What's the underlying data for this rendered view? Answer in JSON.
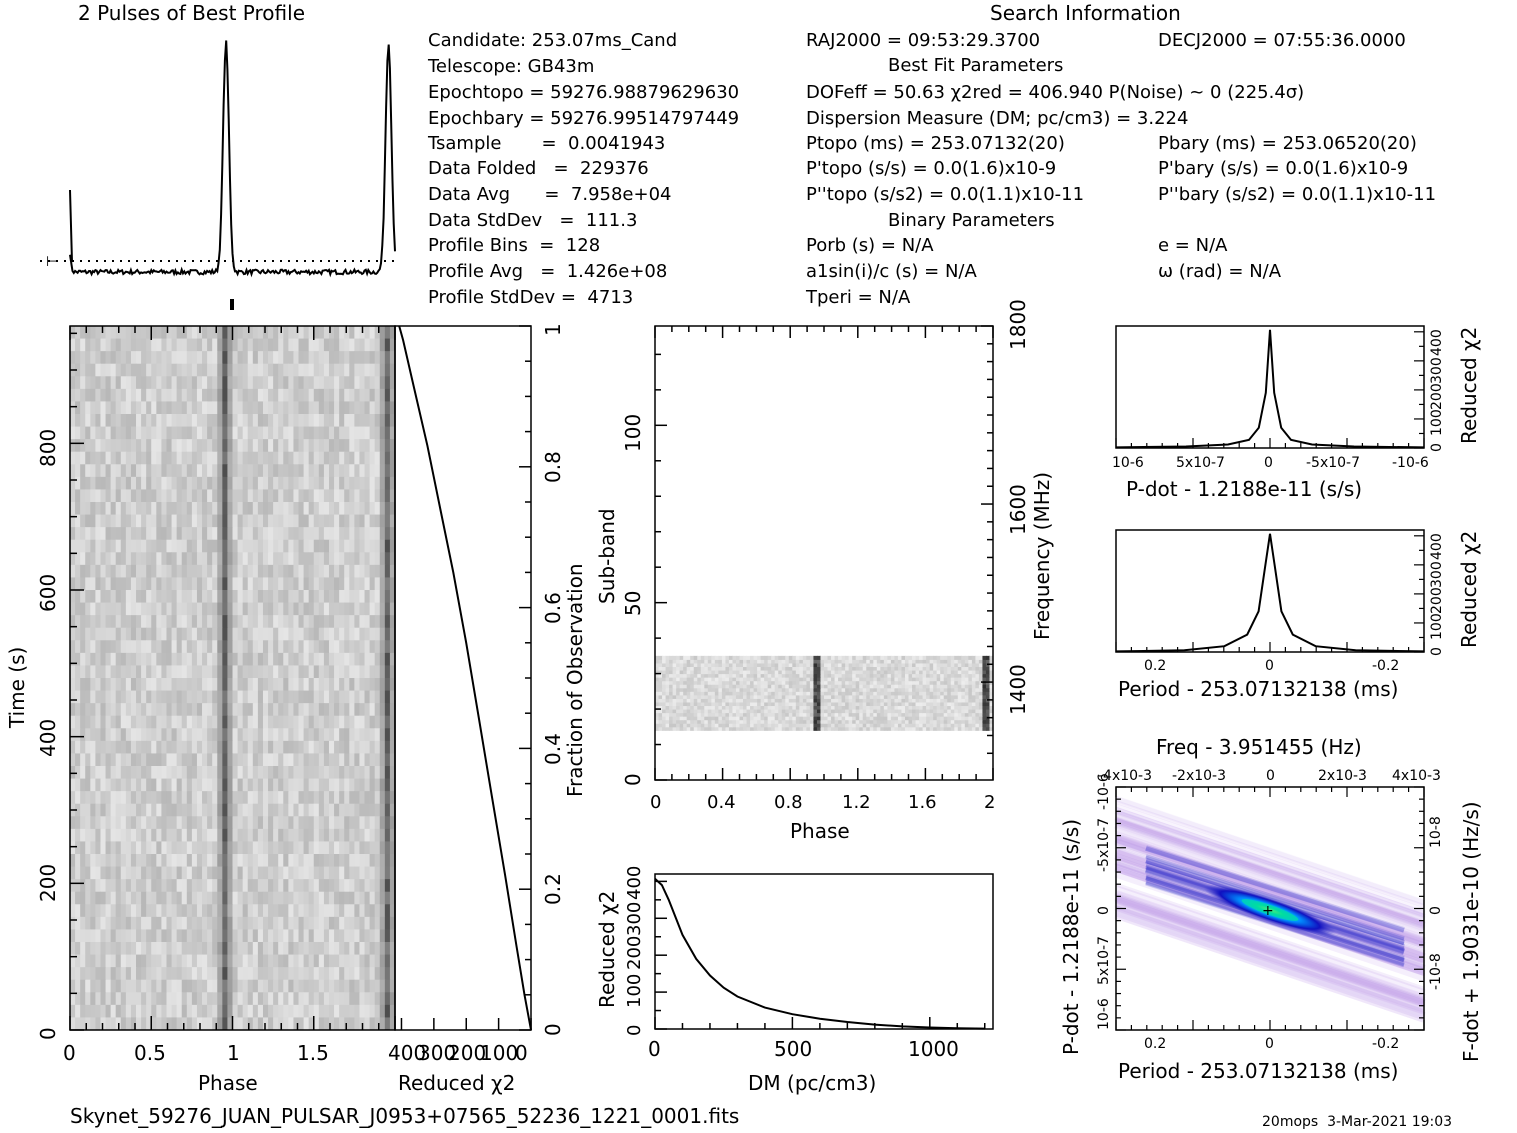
{
  "header": {
    "profile_title": "2 Pulses of Best Profile",
    "search_title": "Search Information",
    "best_fit_title": "Best Fit Parameters",
    "binary_title": "Binary Parameters"
  },
  "info_left": [
    "Candidate:  253.07ms_Cand",
    "Telescope:  GB43m",
    "Epochtopo = 59276.98879629630",
    "Epochbary = 59276.99514797449",
    "Tsample       =  0.0041943",
    "Data Folded   =  229376",
    "Data Avg      =  7.958e+04",
    "Data StdDev   =  111.3",
    "Profile Bins  =  128",
    "Profile Avg   =  1.426e+08",
    "Profile StdDev =  4713"
  ],
  "info_mid": {
    "ra": "RAJ2000 = 09:53:29.3700",
    "dof": "DOFeff = 50.63  χ2red = 406.940  P(Noise) ~ 0   (225.4σ)",
    "dm": "Dispersion Measure (DM; pc/cm3) = 3.224",
    "ptopo": "Ptopo (ms) =  253.07132(20)",
    "pdtopo": "P'topo (s/s) = 0.0(1.6)x10-9",
    "pddtopo": "P''topo (s/s2) = 0.0(1.1)x10-11",
    "porb": "Porb (s) = N/A",
    "a1": "a1sin(i)/c (s) = N/A",
    "tperi": "Tperi = N/A"
  },
  "info_right": {
    "dec": "DECJ2000 = 07:55:36.0000",
    "pbary": "Pbary (ms) =  253.06520(20)",
    "pdbary": "P'bary (s/s) = 0.0(1.6)x10-9",
    "pddbary": "P''bary (s/s2) = 0.0(1.1)x10-11",
    "e": "e = N/A",
    "omega": "ω (rad) = N/A"
  },
  "footer": {
    "filename": "Skynet_59276_JUAN_PULSAR_J0953+07565_52236_1221_0001.fits",
    "stamp": "20mops  3-Mar-2021 19:03"
  },
  "chart_data": [
    {
      "id": "profile",
      "type": "line",
      "title": "2 Pulses of Best Profile",
      "x_range": [
        0,
        2
      ],
      "pulse_phase": 0.96,
      "baseline_level": 0.0,
      "peak_level": 1.0
    },
    {
      "id": "time-phase",
      "type": "heatmap",
      "xlabel": "Phase",
      "ylabel": "Time (s)",
      "x_ticks": [
        "0",
        "0.5",
        "1",
        "1.5"
      ],
      "y_ticks": [
        "0",
        "200",
        "400",
        "600",
        "800"
      ],
      "xlim": [
        0,
        2
      ],
      "ylim": [
        0,
        960
      ],
      "pulse_phase": 0.96
    },
    {
      "id": "reduced-chi2-time",
      "type": "line",
      "xlabel": "Reduced χ2",
      "ylabel": "Fraction of Observation",
      "x_ticks": [
        "400",
        "300",
        "200",
        "100",
        "0"
      ],
      "y_ticks": [
        "0",
        "0.2",
        "0.4",
        "0.6",
        "0.8",
        "1"
      ],
      "xlim": [
        420,
        0
      ],
      "ylim": [
        0,
        1
      ],
      "x": [
        0,
        20,
        45,
        80,
        120,
        160,
        200,
        240,
        280,
        320,
        360,
        395,
        407
      ],
      "y": [
        0,
        0.05,
        0.12,
        0.22,
        0.33,
        0.44,
        0.55,
        0.65,
        0.74,
        0.83,
        0.91,
        0.98,
        1.0
      ]
    },
    {
      "id": "subband-phase",
      "type": "heatmap",
      "xlabel": "Phase",
      "ylabel": "Sub-band",
      "y2label": "Frequency (MHz)",
      "x_ticks": [
        "0",
        "0.4",
        "0.8",
        "1.2",
        "1.6",
        "2"
      ],
      "y_ticks": [
        "0",
        "50",
        "100"
      ],
      "y2_ticks": [
        "1400",
        "1600",
        "1800"
      ],
      "xlim": [
        0,
        2
      ],
      "ylim": [
        0,
        128
      ],
      "data_rows": [
        14,
        35
      ],
      "pulse_phase": 0.96
    },
    {
      "id": "dm-chi2",
      "type": "line",
      "xlabel": "DM (pc/cm3)",
      "ylabel": "Reduced χ2",
      "x_ticks": [
        "0",
        "500",
        "1000"
      ],
      "y_ticks": [
        "0",
        "100",
        "200",
        "300",
        "400"
      ],
      "xlim": [
        0,
        1230
      ],
      "ylim": [
        0,
        420
      ],
      "x": [
        0,
        25,
        50,
        100,
        150,
        200,
        250,
        300,
        400,
        500,
        600,
        700,
        800,
        900,
        1000,
        1100,
        1200
      ],
      "y": [
        407,
        390,
        350,
        255,
        190,
        145,
        112,
        88,
        58,
        40,
        28,
        19,
        12,
        7,
        4,
        2,
        1
      ]
    },
    {
      "id": "pdot-chi2",
      "type": "line",
      "xlabel": "P-dot - 1.2188e-11 (s/s)",
      "ylabel": "Reduced χ2",
      "x_ticks": [
        "10-6",
        "5x10-7",
        "0",
        "-5x10-7",
        "-10-6"
      ],
      "y_ticks": [
        "0",
        "100",
        "200",
        "300",
        "400"
      ],
      "xlim": [
        1.1e-06,
        -1.1e-06
      ],
      "ylim": [
        0,
        420
      ],
      "x": [
        1.1e-06,
        6e-07,
        3e-07,
        1.5e-07,
        8e-08,
        3e-08,
        0,
        -3e-08,
        -8e-08,
        -1.5e-07,
        -3e-07,
        -6e-07,
        -1.1e-06
      ],
      "y": [
        2,
        5,
        12,
        28,
        70,
        190,
        407,
        190,
        70,
        28,
        12,
        5,
        2
      ]
    },
    {
      "id": "period-chi2",
      "type": "line",
      "xlabel": "Period - 253.07132138 (ms)",
      "ylabel": "Reduced χ2",
      "x_ticks": [
        "0.2",
        "0",
        "-0.2"
      ],
      "y_ticks": [
        "0",
        "100",
        "200",
        "300",
        "400"
      ],
      "xlim": [
        0.27,
        -0.27
      ],
      "ylim": [
        0,
        420
      ],
      "x": [
        0.27,
        0.15,
        0.08,
        0.04,
        0.02,
        0.008,
        0,
        -0.008,
        -0.02,
        -0.04,
        -0.08,
        -0.15,
        -0.27
      ],
      "y": [
        2,
        6,
        20,
        60,
        140,
        300,
        407,
        300,
        140,
        60,
        20,
        6,
        2
      ]
    },
    {
      "id": "pdot-period-map",
      "type": "heatmap",
      "title": "Freq - 3.951455 (Hz)",
      "xlabel": "Period - 253.07132138 (ms)",
      "ylabel": "P-dot - 1.2188e-11 (s/s)",
      "y2label": "F-dot + 1.9031e-10 (Hz/s)",
      "x_ticks": [
        "0.2",
        "0",
        "-0.2"
      ],
      "x2_ticks": [
        "-4x10-3",
        "-2x10-3",
        "0",
        "2x10-3",
        "4x10-3"
      ],
      "y_ticks": [
        "10-6",
        "5x10-7",
        "0",
        "-5x10-7",
        "-10-6"
      ],
      "y2_ticks": [
        "-10-8",
        "0",
        "10-8"
      ],
      "xlim": [
        0.27,
        -0.27
      ],
      "ylim": [
        1.1e-06,
        -1.1e-06
      ]
    }
  ]
}
